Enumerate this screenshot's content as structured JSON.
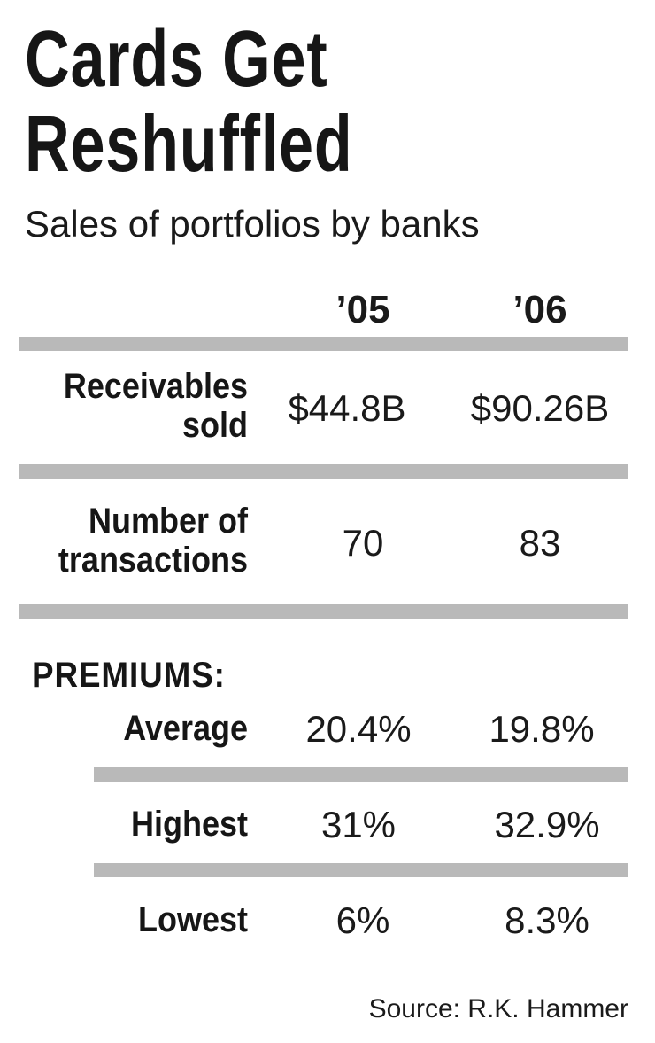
{
  "chart_data": {
    "type": "table",
    "title": [
      "Cards Get",
      "Reshuffled"
    ],
    "subtitle": "Sales of portfolios by banks",
    "columns": [
      "’05",
      "’06"
    ],
    "rows": [
      {
        "label": "Receivables\nsold",
        "values": [
          "$44.8B",
          "$90.26B"
        ]
      },
      {
        "label": "Number of\ntransactions",
        "values": [
          "70",
          "83"
        ]
      }
    ],
    "premiums": {
      "heading": "PREMIUMS:",
      "rows": [
        {
          "label": "Average",
          "values": [
            "20.4%",
            "19.8%"
          ]
        },
        {
          "label": "Highest",
          "values": [
            "31%",
            "32.9%"
          ]
        },
        {
          "label": "Lowest",
          "values": [
            "6%",
            "8.3%"
          ]
        }
      ]
    },
    "source": "Source: R.K. Hammer"
  },
  "colors": {
    "rule": "#b9b9b9",
    "text": "#1a1a1a"
  }
}
